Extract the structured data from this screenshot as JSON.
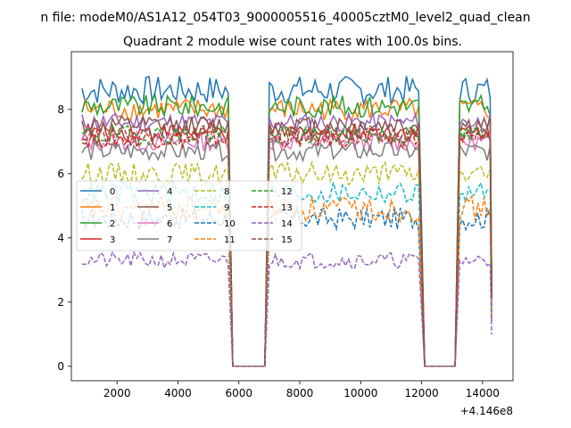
{
  "figure": {
    "suptitle": "n file: modeM0/AS1A12_054T03_9000005516_40005cztM0_level2_quad_clean",
    "title": "Quadrant 2 module wise count rates with 100.0s bins.",
    "x_offset_label": "+4.146e8"
  },
  "chart_data": {
    "type": "line",
    "title": "Quadrant 2 module wise count rates with 100.0s bins.",
    "xlabel": "",
    "ylabel": "",
    "x_offset": 414600000,
    "xlim": [
      500,
      15000
    ],
    "ylim": [
      -0.45,
      9.8
    ],
    "xticks": [
      2000,
      4000,
      6000,
      8000,
      10000,
      12000,
      14000
    ],
    "xtick_labels": [
      "2000",
      "4000",
      "6000",
      "8000",
      "10000",
      "12000",
      "14000"
    ],
    "yticks": [
      0,
      2,
      4,
      6,
      8
    ],
    "ytick_labels": [
      "0",
      "2",
      "4",
      "6",
      "8"
    ],
    "grid": false,
    "legend_position": "center-left",
    "legend_columns": 4,
    "segments": [
      [
        850,
        5650
      ],
      [
        7000,
        11950
      ],
      [
        13250,
        14250
      ]
    ],
    "series": [
      {
        "name": "0",
        "level": 8.6,
        "amp": 0.45,
        "color": "#1f77b4",
        "dashed": false
      },
      {
        "name": "1",
        "level": 8.0,
        "amp": 0.35,
        "color": "#ff7f0e",
        "dashed": false
      },
      {
        "name": "2",
        "level": 8.1,
        "amp": 0.35,
        "color": "#2ca02c",
        "dashed": false
      },
      {
        "name": "3",
        "level": 7.3,
        "amp": 0.3,
        "color": "#d62728",
        "dashed": false
      },
      {
        "name": "4",
        "level": 7.6,
        "amp": 0.3,
        "color": "#9467bd",
        "dashed": false
      },
      {
        "name": "5",
        "level": 7.5,
        "amp": 0.3,
        "color": "#8c564b",
        "dashed": false
      },
      {
        "name": "6",
        "level": 7.0,
        "amp": 0.3,
        "color": "#e377c2",
        "dashed": false
      },
      {
        "name": "7",
        "level": 6.7,
        "amp": 0.3,
        "color": "#7f7f7f",
        "dashed": false
      },
      {
        "name": "8",
        "level": 6.0,
        "amp": 0.35,
        "color": "#bcbd22",
        "dashed": true
      },
      {
        "name": "9",
        "level": 5.4,
        "amp": 0.35,
        "color": "#17becf",
        "dashed": true
      },
      {
        "name": "10",
        "level": 4.6,
        "amp": 0.35,
        "color": "#1f77b4",
        "dashed": true
      },
      {
        "name": "11",
        "level": 4.9,
        "amp": 0.4,
        "color": "#ff7f0e",
        "dashed": true
      },
      {
        "name": "12",
        "level": 7.2,
        "amp": 0.3,
        "color": "#2ca02c",
        "dashed": true
      },
      {
        "name": "13",
        "level": 7.1,
        "amp": 0.3,
        "color": "#d62728",
        "dashed": true
      },
      {
        "name": "14",
        "level": 3.3,
        "amp": 0.25,
        "color": "#9467bd",
        "dashed": true
      },
      {
        "name": "15",
        "level": 7.2,
        "amp": 0.3,
        "color": "#8c564b",
        "dashed": true
      }
    ]
  }
}
